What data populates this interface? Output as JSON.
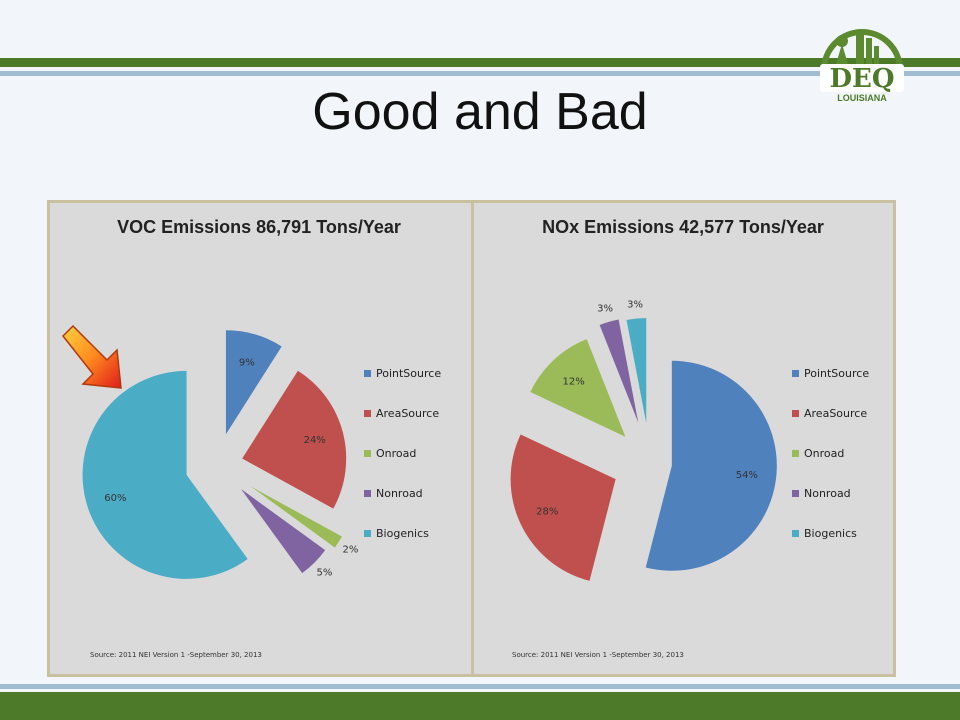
{
  "slide": {
    "title": "Good and Bad"
  },
  "logo": {
    "text": "DEQ",
    "subtext": "LOUISIANA"
  },
  "colors": {
    "PointSource": "#4f81bd",
    "AreaSource": "#c0504d",
    "Onroad": "#9bbb59",
    "Nonroad": "#8064a2",
    "Biogenics": "#4bacc6"
  },
  "chart_data": [
    {
      "type": "pie",
      "title": "VOC Emissions 86,791 Tons/Year",
      "categories": [
        "PointSource",
        "AreaSource",
        "Onroad",
        "Nonroad",
        "Biogenics"
      ],
      "values": [
        9,
        24,
        2,
        5,
        60
      ],
      "labels": [
        "9%",
        "24%",
        "2%",
        "5%",
        "60%"
      ],
      "legend_position": "right",
      "source": "Source: 2011 NEI Version 1 -September 30, 2013"
    },
    {
      "type": "pie",
      "title": "NOx Emissions 42,577 Tons/Year",
      "categories": [
        "PointSource",
        "AreaSource",
        "Onroad",
        "Nonroad",
        "Biogenics"
      ],
      "values": [
        54,
        28,
        12,
        3,
        3
      ],
      "labels": [
        "54%",
        "28%",
        "12%",
        "3%",
        "3%"
      ],
      "legend_position": "right",
      "source": "Source: 2011 NEI Version 1 -September 30, 2013"
    }
  ]
}
